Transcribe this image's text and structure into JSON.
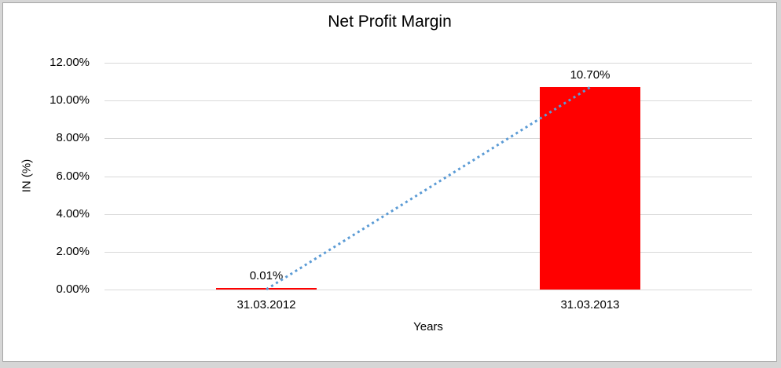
{
  "chart_data": {
    "type": "bar",
    "title": "Net Profit Margin",
    "categories": [
      "31.03.2012",
      "31.03.2013"
    ],
    "values": [
      0.01,
      10.7
    ],
    "value_labels": [
      "0.01%",
      "10.70%"
    ],
    "xlabel": "Years",
    "ylabel": "IN (%)",
    "ylim": [
      0,
      12
    ],
    "ytick_step": 2,
    "ytick_labels": [
      "0.00%",
      "2.00%",
      "4.00%",
      "6.00%",
      "8.00%",
      "10.00%",
      "12.00%"
    ],
    "grid": true,
    "legend": "none",
    "trendline": {
      "type": "linear",
      "style": "dotted",
      "color": "#5B9BD5"
    },
    "colors": {
      "bar": "#FF0000",
      "gridline": "#D9D9D9",
      "text": "#000000",
      "frame_border": "#A6A6A6"
    }
  }
}
